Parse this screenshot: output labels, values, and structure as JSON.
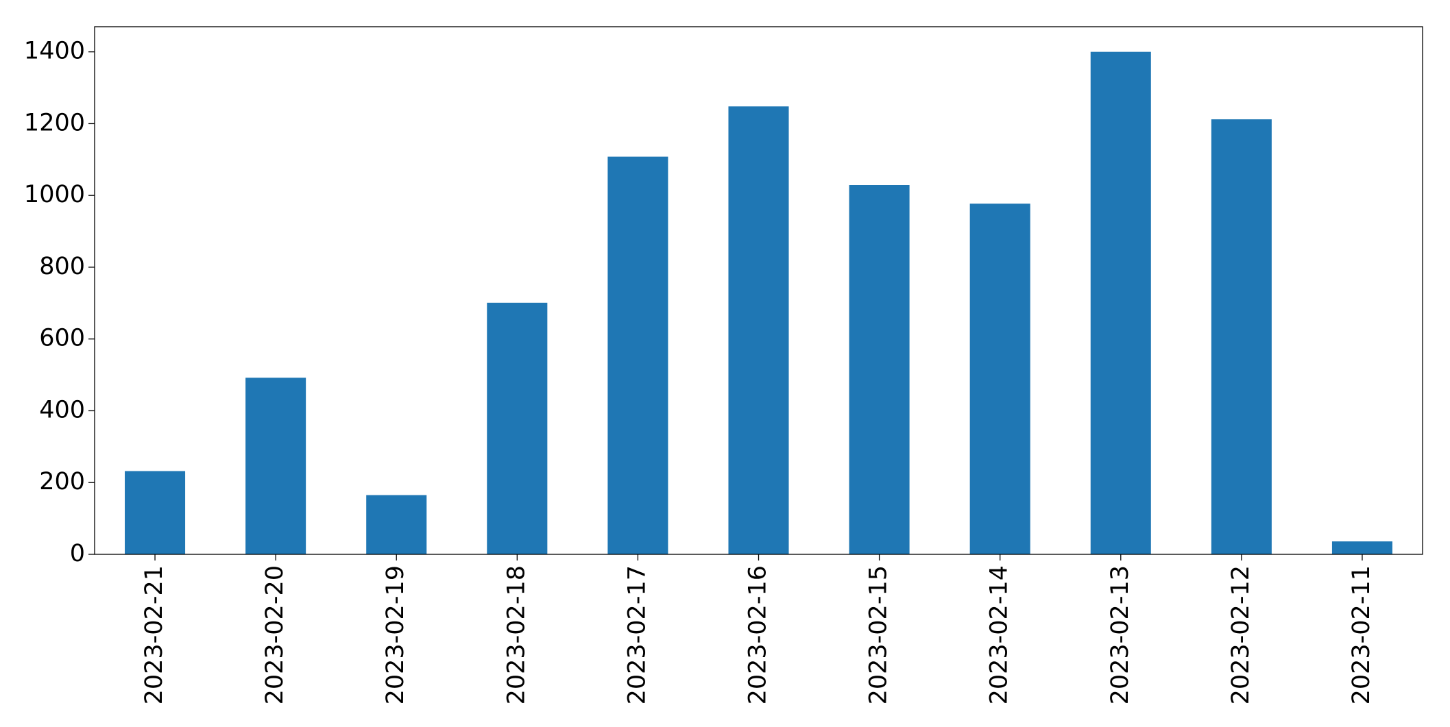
{
  "chart_data": {
    "type": "bar",
    "categories": [
      "2023-02-21",
      "2023-02-20",
      "2023-02-19",
      "2023-02-18",
      "2023-02-17",
      "2023-02-16",
      "2023-02-15",
      "2023-02-14",
      "2023-02-13",
      "2023-02-12",
      "2023-02-11"
    ],
    "values": [
      232,
      492,
      165,
      701,
      1108,
      1248,
      1029,
      977,
      1400,
      1212,
      36
    ],
    "color": "#1f77b4",
    "ylim": [
      0,
      1470
    ],
    "yticks": [
      0,
      200,
      400,
      600,
      800,
      1000,
      1200,
      1400
    ],
    "grid": false
  }
}
